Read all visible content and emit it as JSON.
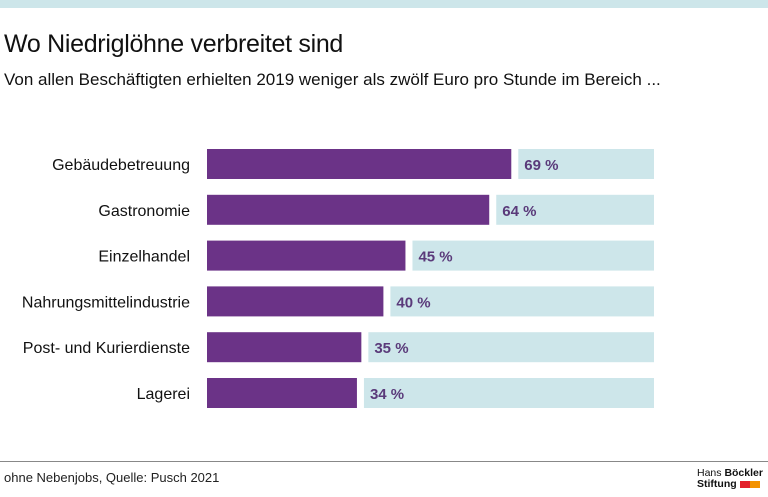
{
  "title": "Wo Niedriglöhne verbreitet sind",
  "subtitle": "Von allen Beschäftigten erhielten 2019 weniger als zwölf Euro pro Stunde im Bereich ...",
  "source": "ohne Nebenjobs, Quelle: Pusch 2021",
  "logo": {
    "line1a": "Hans",
    "line1b": "Böckler",
    "line2": "Stiftung"
  },
  "colors": {
    "bar": "#6b3387",
    "track": "#cde6ea",
    "label": "#5a3a7a"
  },
  "chart_data": {
    "type": "bar",
    "orientation": "horizontal",
    "categories": [
      "Gebäudebetreuung",
      "Gastronomie",
      "Einzelhandel",
      "Nahrungsmittelindustrie",
      "Post- und Kurierdienste",
      "Lagerei"
    ],
    "values": [
      69,
      64,
      45,
      40,
      35,
      34
    ],
    "value_labels": [
      "69 %",
      "64 %",
      "45 %",
      "40 %",
      "35 %",
      "34 %"
    ],
    "xlim": [
      0,
      100
    ],
    "grid": false
  }
}
